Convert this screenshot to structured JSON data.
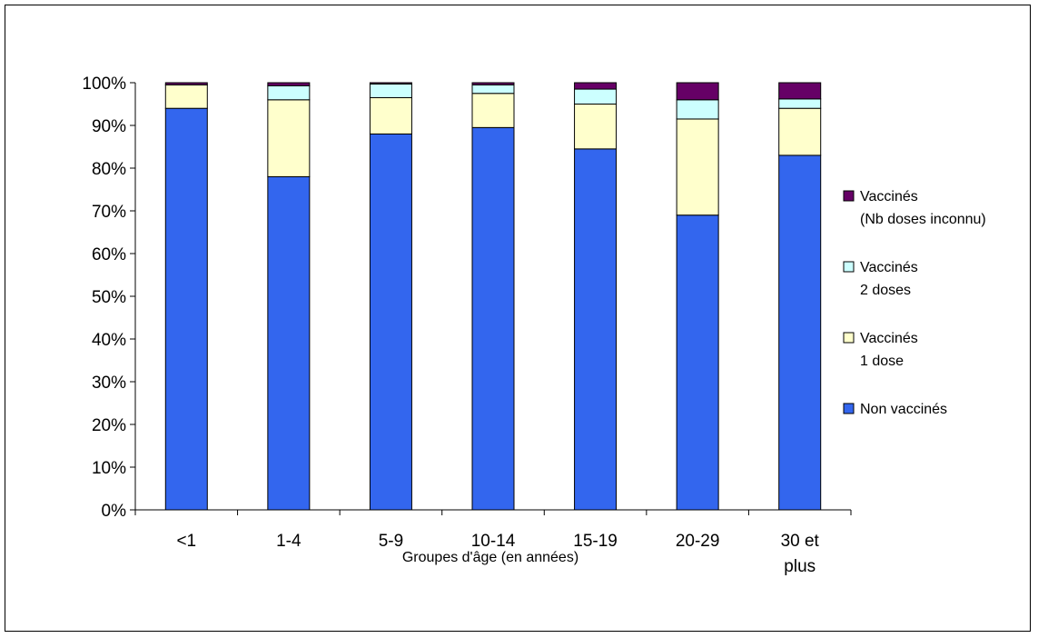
{
  "chart_data": {
    "type": "bar",
    "stacked": true,
    "percent": true,
    "categories": [
      "<1",
      "1-4",
      "5-9",
      "10-14",
      "15-19",
      "20-29",
      "30 et plus"
    ],
    "series": [
      {
        "name": "Non vaccinés",
        "values": [
          94,
          78,
          88,
          89.5,
          84.5,
          69,
          83
        ],
        "color": "#3366EE"
      },
      {
        "name": "Vaccinés 1 dose",
        "values": [
          5.5,
          18,
          8.5,
          8,
          10.5,
          22.5,
          11
        ],
        "color": "#FFFFCC"
      },
      {
        "name": "Vaccinés 2 doses",
        "values": [
          0,
          3.3,
          3.2,
          2,
          3.5,
          4.5,
          2.2
        ],
        "color": "#CCFFFF"
      },
      {
        "name": "Vaccinés (Nb doses inconnu)",
        "values": [
          0.5,
          0.7,
          0.3,
          0.5,
          1.5,
          4,
          3.8
        ],
        "color": "#660066"
      }
    ],
    "legend": [
      {
        "lines": [
          "Vaccinés",
          "(Nb doses inconnu)"
        ],
        "color": "#660066"
      },
      {
        "lines": [
          "Vaccinés",
          "2 doses"
        ],
        "color": "#CCFFFF"
      },
      {
        "lines": [
          "Vaccinés",
          "1 dose"
        ],
        "color": "#FFFFCC"
      },
      {
        "lines": [
          "Non vaccinés"
        ],
        "color": "#3366EE"
      }
    ],
    "y_ticks": [
      "0%",
      "10%",
      "20%",
      "30%",
      "40%",
      "50%",
      "60%",
      "70%",
      "80%",
      "90%",
      "100%"
    ],
    "ylim": [
      0,
      100
    ],
    "xlabel": "Groupes d'âge (en années)",
    "ylabel": "",
    "title": "",
    "legend_position": "right",
    "grid": false
  }
}
